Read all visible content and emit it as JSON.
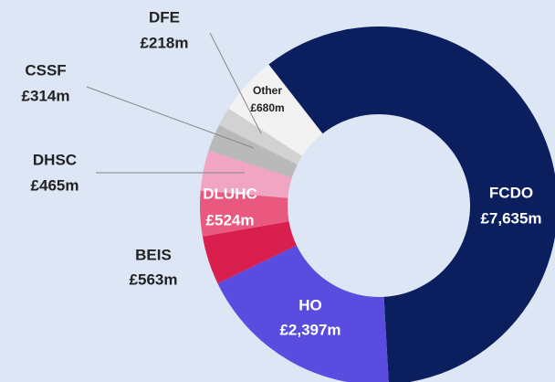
{
  "chart_data": {
    "type": "donut",
    "categories": [
      "FCDO",
      "HO",
      "BEIS",
      "DLUHC",
      "DHSC",
      "CSSF",
      "DFE",
      "Other"
    ],
    "values": [
      7635,
      2397,
      563,
      524,
      465,
      314,
      218,
      680
    ],
    "value_labels": [
      "£7,635m",
      "£2,397m",
      "£563m",
      "£524m",
      "£465m",
      "£314m",
      "£218m",
      "£680m"
    ],
    "colors": [
      "#0b1f5e",
      "#5b4ce0",
      "#d81f4e",
      "#e9587f",
      "#f0a5c2",
      "#b9b9b9",
      "#d2d2d2",
      "#f2f2f2"
    ]
  }
}
